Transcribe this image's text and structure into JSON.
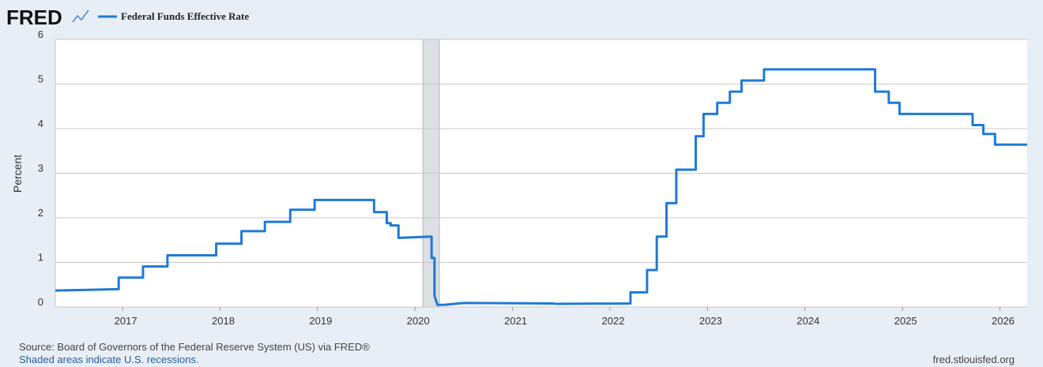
{
  "chart_data": {
    "type": "line",
    "logo": "FRED",
    "y_label": "Percent",
    "source": "Source: Board of Governors of the Federal Reserve System (US) via FRED®",
    "note": "Shaded areas indicate U.S. recessions.",
    "site": "fred.stlouisfed.org",
    "x": [
      2016.31,
      2016.96,
      2016.96,
      2017.21,
      2017.21,
      2017.46,
      2017.46,
      2017.96,
      2017.96,
      2018.22,
      2018.22,
      2018.46,
      2018.46,
      2018.72,
      2018.72,
      2018.97,
      2018.97,
      2019.58,
      2019.58,
      2019.71,
      2019.71,
      2019.75,
      2019.75,
      2019.83,
      2019.83,
      2020.17,
      2020.17,
      2020.2,
      2020.2,
      2020.23,
      2020.3,
      2020.5,
      2021.4,
      2021.45,
      2022.21,
      2022.21,
      2022.38,
      2022.38,
      2022.48,
      2022.48,
      2022.58,
      2022.58,
      2022.68,
      2022.68,
      2022.88,
      2022.88,
      2022.96,
      2022.96,
      2023.1,
      2023.1,
      2023.23,
      2023.23,
      2023.35,
      2023.35,
      2023.58,
      2023.58,
      2024.72,
      2024.72,
      2024.86,
      2024.86,
      2024.97,
      2024.97,
      2025.72,
      2025.72,
      2025.83,
      2025.83,
      2025.95,
      2025.95,
      2026.28
    ],
    "series": [
      {
        "name": "Federal Funds Effective Rate",
        "color": "#1e7ad6",
        "values": [
          0.37,
          0.4,
          0.66,
          0.66,
          0.91,
          0.91,
          1.16,
          1.16,
          1.42,
          1.42,
          1.7,
          1.7,
          1.91,
          1.91,
          2.18,
          2.18,
          2.4,
          2.4,
          2.13,
          2.13,
          1.88,
          1.88,
          1.83,
          1.83,
          1.55,
          1.58,
          1.1,
          1.1,
          0.25,
          0.05,
          0.05,
          0.09,
          0.08,
          0.07,
          0.08,
          0.33,
          0.33,
          0.83,
          0.83,
          1.58,
          1.58,
          2.33,
          2.33,
          3.08,
          3.08,
          3.83,
          3.83,
          4.33,
          4.33,
          4.58,
          4.58,
          4.83,
          4.83,
          5.08,
          5.08,
          5.33,
          5.33,
          4.83,
          4.83,
          4.58,
          4.58,
          4.33,
          4.33,
          4.08,
          4.08,
          3.88,
          3.88,
          3.64,
          3.64
        ]
      }
    ],
    "recessions": [
      {
        "start": 2020.08,
        "end": 2020.25
      }
    ],
    "xlim": [
      2016.31,
      2026.28
    ],
    "xticks": [
      2017,
      2018,
      2019,
      2020,
      2021,
      2022,
      2023,
      2024,
      2025,
      2026
    ],
    "ylim": [
      0,
      6
    ],
    "yticks": [
      0,
      1,
      2,
      3,
      4,
      5,
      6
    ],
    "grid": true
  }
}
